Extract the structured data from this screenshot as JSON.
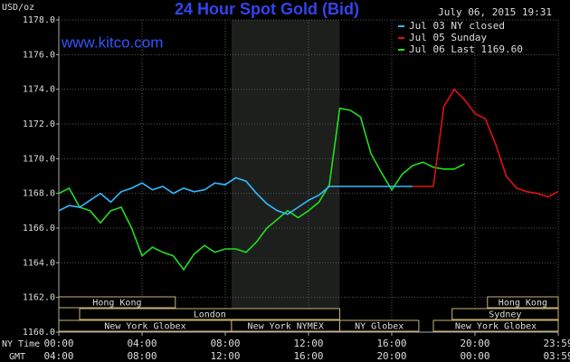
{
  "chart_data": {
    "type": "line",
    "title": "24 Hour Spot Gold (Bid)",
    "site": "www.kitco.com",
    "timestamp": "July 06, 2015 19:31",
    "y_label": "USD/oz",
    "x_label": "NY Time",
    "x2_label": "GMT",
    "x": [
      0,
      0.5,
      1,
      1.5,
      2,
      2.5,
      3,
      3.5,
      4,
      4.5,
      5,
      5.5,
      6,
      6.5,
      7,
      7.5,
      8,
      8.5,
      9,
      9.5,
      10,
      10.5,
      11,
      11.5,
      12,
      12.5,
      13,
      13.5,
      14,
      14.5,
      15,
      15.5,
      16,
      16.5,
      17,
      17.5,
      18,
      18.5,
      19,
      19.5,
      20,
      20.5,
      21,
      21.5,
      22,
      22.5,
      23,
      23.5,
      24
    ],
    "series": [
      {
        "name": "Jul 06 Last 1169.60",
        "color": "#22dd22",
        "values": [
          1168.0,
          1168.3,
          1167.2,
          1167.0,
          1166.3,
          1167.0,
          1167.2,
          1166.0,
          1164.4,
          1164.9,
          1164.6,
          1164.4,
          1163.6,
          1164.5,
          1165.0,
          1164.6,
          1164.8,
          1164.8,
          1164.6,
          1165.2,
          1166.0,
          1166.5,
          1167.0,
          1166.6,
          1167.0,
          1167.5,
          1168.5,
          1172.9,
          1172.8,
          1172.4,
          1170.3,
          1169.2,
          1168.2,
          1169.1,
          1169.6,
          1169.8,
          1169.5,
          1169.4,
          1169.4,
          1169.7,
          null,
          null,
          null,
          null,
          null,
          null,
          null,
          null,
          null
        ]
      },
      {
        "name": "Jul 05 Sunday",
        "color": "#e01010",
        "values": [
          null,
          null,
          null,
          null,
          null,
          null,
          null,
          null,
          null,
          null,
          null,
          null,
          null,
          null,
          null,
          null,
          null,
          null,
          null,
          null,
          null,
          null,
          null,
          null,
          null,
          null,
          null,
          null,
          null,
          null,
          null,
          null,
          null,
          null,
          1168.4,
          1168.4,
          1168.4,
          1173.0,
          1174.0,
          1173.4,
          1172.6,
          1172.3,
          1170.8,
          1169.0,
          1168.3,
          1168.1,
          1168.0,
          1167.8,
          1168.1
        ]
      },
      {
        "name": "Jul 03 NY closed",
        "color": "#33bbff",
        "values": [
          1167.0,
          1167.3,
          1167.2,
          1167.6,
          1168.0,
          1167.5,
          1168.1,
          1168.3,
          1168.6,
          1168.2,
          1168.4,
          1168.0,
          1168.3,
          1168.1,
          1168.2,
          1168.6,
          1168.5,
          1168.9,
          1168.7,
          1168.0,
          1167.4,
          1167.0,
          1166.8,
          1167.2,
          1167.6,
          1167.9,
          1168.4,
          1168.4,
          1168.4,
          1168.4,
          1168.4,
          1168.4,
          1168.4,
          1168.4,
          1168.4,
          null,
          null,
          null,
          null,
          null,
          null,
          null,
          null,
          null,
          null,
          null,
          null,
          null,
          null
        ]
      }
    ],
    "legend_order": [
      2,
      1,
      0
    ],
    "xlim": [
      0,
      24
    ],
    "xticks": [
      {
        "value": 0,
        "label": "00:00"
      },
      {
        "value": 4,
        "label": "04:00"
      },
      {
        "value": 8,
        "label": "08:00"
      },
      {
        "value": 12,
        "label": "12:00"
      },
      {
        "value": 16,
        "label": "16:00"
      },
      {
        "value": 20,
        "label": "20:00"
      },
      {
        "value": 24,
        "label": "23:59"
      }
    ],
    "gmt_labels": [
      "04:00",
      "08:00",
      "12:00",
      "16:00",
      "20:00",
      "00:00",
      "03:59"
    ],
    "ylim": [
      1160,
      1178
    ],
    "yticks": [
      {
        "value": 1160,
        "label": "1160.0"
      },
      {
        "value": 1162,
        "label": "1162.0"
      },
      {
        "value": 1164,
        "label": "1164.0"
      },
      {
        "value": 1166,
        "label": "1166.0"
      },
      {
        "value": 1168,
        "label": "1168.0"
      },
      {
        "value": 1170,
        "label": "1170.0"
      },
      {
        "value": 1172,
        "label": "1172.0"
      },
      {
        "value": 1174,
        "label": "1174.0"
      },
      {
        "value": 1176,
        "label": "1176.0"
      },
      {
        "value": 1178,
        "label": "1178.0"
      }
    ],
    "grid": true,
    "shaded_xlim": [
      8.3,
      13.5
    ],
    "session_rows": [
      [
        {
          "label": "Hong Kong",
          "start": 0,
          "end": 5.6
        },
        {
          "label": "Hong Kong",
          "start": 20.6,
          "end": 24
        }
      ],
      [
        {
          "label": "London",
          "start": 1.0,
          "end": 13.5
        },
        {
          "label": "Sydney",
          "start": 18.9,
          "end": 24
        }
      ],
      [
        {
          "label": "New York Globex",
          "start": 0,
          "end": 8.3
        },
        {
          "label": "New York NYMEX",
          "start": 8.3,
          "end": 13.5
        },
        {
          "label": "NY Globex",
          "start": 13.5,
          "end": 17.3
        },
        {
          "label": "New York Globex",
          "start": 18.0,
          "end": 24
        }
      ]
    ]
  }
}
